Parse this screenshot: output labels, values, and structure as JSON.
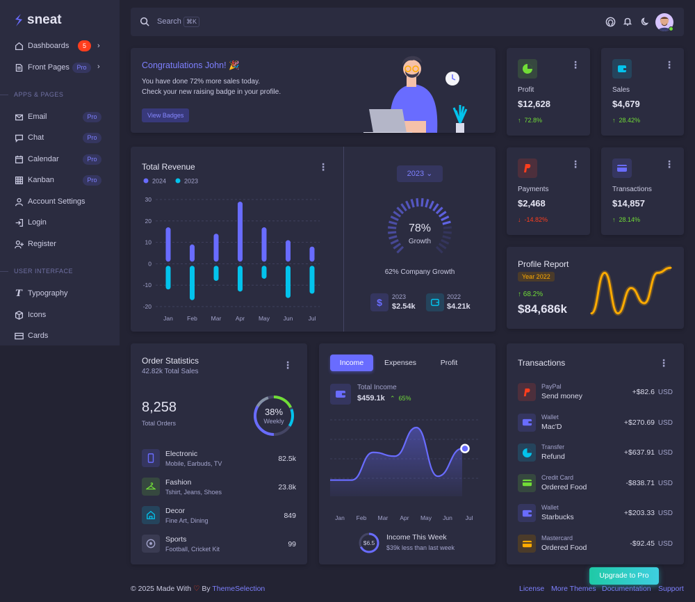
{
  "brand": {
    "name": "sneat"
  },
  "sidebar": {
    "dashboards": {
      "label": "Dashboards",
      "badge": "5"
    },
    "front_pages": {
      "label": "Front Pages",
      "badge": "Pro"
    },
    "section_apps": "APPS & PAGES",
    "email": {
      "label": "Email",
      "badge": "Pro"
    },
    "chat": {
      "label": "Chat",
      "badge": "Pro"
    },
    "calendar": {
      "label": "Calendar",
      "badge": "Pro"
    },
    "kanban": {
      "label": "Kanban",
      "badge": "Pro"
    },
    "account_settings": {
      "label": "Account Settings"
    },
    "login": {
      "label": "Login"
    },
    "register": {
      "label": "Register"
    },
    "section_ui": "USER INTERFACE",
    "typography": {
      "label": "Typography"
    },
    "icons": {
      "label": "Icons"
    },
    "cards": {
      "label": "Cards"
    }
  },
  "navbar": {
    "search_placeholder": "Search",
    "search_shortcut": "⌘K"
  },
  "welcome": {
    "title": "Congratulations John! 🎉",
    "line1": "You have done 72% more sales today.",
    "line2": "Check your new raising badge in your profile.",
    "button": "View Badges"
  },
  "stats": {
    "profit": {
      "label": "Profit",
      "value": "$12,628",
      "change": "72.8%"
    },
    "sales": {
      "label": "Sales",
      "value": "$4,679",
      "change": "28.42%"
    },
    "payments": {
      "label": "Payments",
      "value": "$2,468",
      "change": "-14.82%"
    },
    "transactions": {
      "label": "Transactions",
      "value": "$14,857",
      "change": "28.14%"
    }
  },
  "revenue": {
    "title": "Total Revenue",
    "year_select": "2023",
    "growth_percent": "78%",
    "growth_label": "Growth",
    "company_growth": "62% Company Growth",
    "y2023": {
      "year": "2023",
      "value": "$2.54k"
    },
    "y2022": {
      "year": "2022",
      "value": "$4.21k"
    }
  },
  "profile_report": {
    "title": "Profile Report",
    "badge": "Year 2022",
    "change": "68.2%",
    "value": "$84,686k"
  },
  "order_stats": {
    "title": "Order Statistics",
    "subtitle": "42.82k Total Sales",
    "total": "8,258",
    "total_label": "Total Orders",
    "ring_percent": "38%",
    "ring_label": "Weekly",
    "items": [
      {
        "title": "Electronic",
        "sub": "Mobile, Earbuds, TV",
        "value": "82.5k"
      },
      {
        "title": "Fashion",
        "sub": "Tshirt, Jeans, Shoes",
        "value": "23.8k"
      },
      {
        "title": "Decor",
        "sub": "Fine Art, Dining",
        "value": "849"
      },
      {
        "title": "Sports",
        "sub": "Football, Cricket Kit",
        "value": "99"
      }
    ]
  },
  "income": {
    "tabs": [
      "Income",
      "Expenses",
      "Profit"
    ],
    "total_label": "Total Income",
    "total_value": "$459.1k",
    "change": "65%",
    "week_ring": "$6.5",
    "week_title": "Income This Week",
    "week_sub": "$39k less than last week"
  },
  "transactions": {
    "title": "Transactions",
    "currency": "USD",
    "items": [
      {
        "source": "PayPal",
        "desc": "Send money",
        "amount": "+$82.6"
      },
      {
        "source": "Wallet",
        "desc": "Mac'D",
        "amount": "+$270.69"
      },
      {
        "source": "Transfer",
        "desc": "Refund",
        "amount": "+$637.91"
      },
      {
        "source": "Credit Card",
        "desc": "Ordered Food",
        "amount": "-$838.71"
      },
      {
        "source": "Wallet",
        "desc": "Starbucks",
        "amount": "+$203.33"
      },
      {
        "source": "Mastercard",
        "desc": "Ordered Food",
        "amount": "-$92.45"
      }
    ]
  },
  "footer": {
    "copyright": "© 2025 Made With",
    "by": "By",
    "company": "ThemeSelection",
    "links": [
      "License",
      "More Themes",
      "Documentation",
      "Support"
    ],
    "upgrade": "Upgrade to Pro"
  },
  "colors": {
    "primary": "#696cff",
    "info": "#03c3ec",
    "success": "#71dd37",
    "danger": "#ff3e1d",
    "warning": "#ffab00"
  },
  "chart_data": [
    {
      "type": "bar",
      "title": "Total Revenue",
      "categories": [
        "Jan",
        "Feb",
        "Mar",
        "Apr",
        "May",
        "Jun",
        "Jul"
      ],
      "series": [
        {
          "name": "2024",
          "values": [
            17,
            9,
            14,
            29,
            17,
            11,
            8
          ]
        },
        {
          "name": "2023",
          "values": [
            -12,
            -17,
            -8,
            -13,
            -7,
            -16,
            -14
          ]
        }
      ],
      "y_ticks": [
        30,
        20,
        10,
        0,
        -10,
        -20
      ],
      "ylim": [
        -20,
        30
      ],
      "legend": "top-left"
    },
    {
      "type": "line",
      "title": "Profile Report",
      "x": [
        0,
        1,
        2,
        3,
        4,
        5,
        6
      ],
      "values": [
        5,
        45,
        5,
        30,
        15,
        45,
        50
      ]
    },
    {
      "type": "area",
      "title": "Income",
      "categories": [
        "Jan",
        "Feb",
        "Mar",
        "Apr",
        "May",
        "Jun",
        "Jul"
      ],
      "values": [
        3350,
        3350,
        4800,
        4600,
        6100,
        3550,
        5000
      ]
    }
  ]
}
